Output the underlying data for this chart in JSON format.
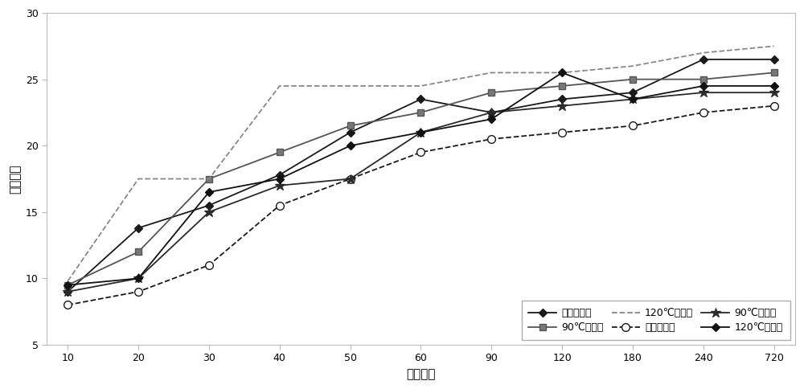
{
  "x_indices": [
    0,
    1,
    2,
    3,
    4,
    5,
    6,
    7,
    8,
    9,
    10
  ],
  "x_labels": [
    "10",
    "20",
    "30",
    "40",
    "50",
    "60",
    "90",
    "120",
    "180",
    "240",
    "720"
  ],
  "series": [
    {
      "label": "常温（细）",
      "y": [
        9.0,
        13.8,
        15.5,
        17.8,
        21.0,
        23.5,
        22.5,
        23.5,
        24.0,
        26.5,
        26.5
      ],
      "color": "#1a1a1a",
      "linestyle": "-",
      "marker": "D",
      "markersize": 5,
      "linewidth": 1.3,
      "markerfacecolor": "#1a1a1a"
    },
    {
      "label": "90℃（细）",
      "y": [
        9.5,
        12.0,
        17.5,
        19.5,
        21.5,
        22.5,
        24.0,
        24.5,
        25.0,
        25.0,
        25.5
      ],
      "color": "#555555",
      "linestyle": "-",
      "marker": "s",
      "markersize": 6,
      "linewidth": 1.3,
      "markerfacecolor": "#777777"
    },
    {
      "label": "120℃（细）",
      "y": [
        9.8,
        17.5,
        17.5,
        24.5,
        24.5,
        24.5,
        25.5,
        25.5,
        26.0,
        27.0,
        27.5
      ],
      "color": "#888888",
      "linestyle": "--",
      "marker": null,
      "markersize": 0,
      "linewidth": 1.3,
      "markerfacecolor": null
    },
    {
      "label": "常温（粗）",
      "y": [
        8.0,
        9.0,
        11.0,
        15.5,
        17.5,
        19.5,
        20.5,
        21.0,
        21.5,
        22.5,
        23.0
      ],
      "color": "#1a1a1a",
      "linestyle": "--",
      "marker": "o",
      "markersize": 7,
      "linewidth": 1.3,
      "markerfacecolor": "white"
    },
    {
      "label": "90℃（粗）",
      "y": [
        9.0,
        10.0,
        15.0,
        17.0,
        17.5,
        21.0,
        22.5,
        23.0,
        23.5,
        24.0,
        24.0
      ],
      "color": "#2a2a2a",
      "linestyle": "-",
      "marker": "*",
      "markersize": 9,
      "linewidth": 1.3,
      "markerfacecolor": "#2a2a2a"
    },
    {
      "label": "120℃（粗）",
      "y": [
        9.5,
        10.0,
        16.5,
        17.5,
        20.0,
        21.0,
        22.0,
        25.5,
        23.5,
        24.5,
        24.5
      ],
      "color": "#111111",
      "linestyle": "-",
      "marker": "D",
      "markersize": 5,
      "linewidth": 1.3,
      "markerfacecolor": "#111111"
    }
  ],
  "xlabel": "时间，分",
  "ylabel": "膨胀倍数",
  "ylim": [
    5,
    30
  ],
  "yticks": [
    5,
    10,
    15,
    20,
    25,
    30
  ],
  "background_color": "#ffffff",
  "axis_fontsize": 11,
  "tick_fontsize": 9,
  "legend_fontsize": 9
}
